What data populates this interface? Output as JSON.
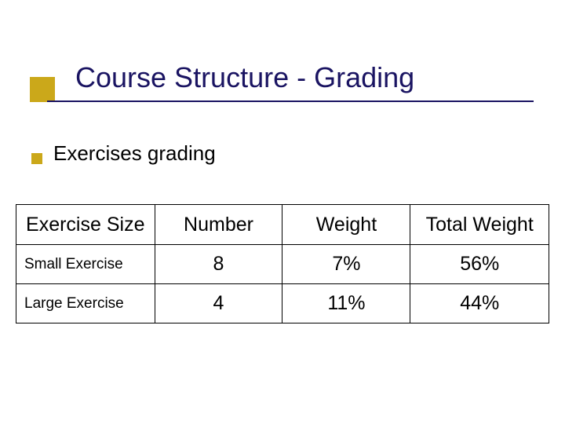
{
  "accent_color": "#cba81a",
  "title_color": "#1a1462",
  "underline_color": "#1a1462",
  "background_color": "#ffffff",
  "text_color": "#000000",
  "title": "Course Structure - Grading",
  "subtitle": "Exercises grading",
  "table": {
    "type": "table",
    "border_color": "#000000",
    "header_fontsize": 25,
    "cell_fontsize": 25,
    "rowlabel_fontsize": 19,
    "columns": [
      "Exercise Size",
      "Number",
      "Weight",
      "Total Weight"
    ],
    "column_widths_pct": [
      26,
      24,
      24,
      26
    ],
    "rows": [
      {
        "label": "Small Exercise",
        "number": "8",
        "weight": "7%",
        "total": "56%"
      },
      {
        "label": "Large Exercise",
        "number": "4",
        "weight": "11%",
        "total": "44%"
      }
    ]
  }
}
